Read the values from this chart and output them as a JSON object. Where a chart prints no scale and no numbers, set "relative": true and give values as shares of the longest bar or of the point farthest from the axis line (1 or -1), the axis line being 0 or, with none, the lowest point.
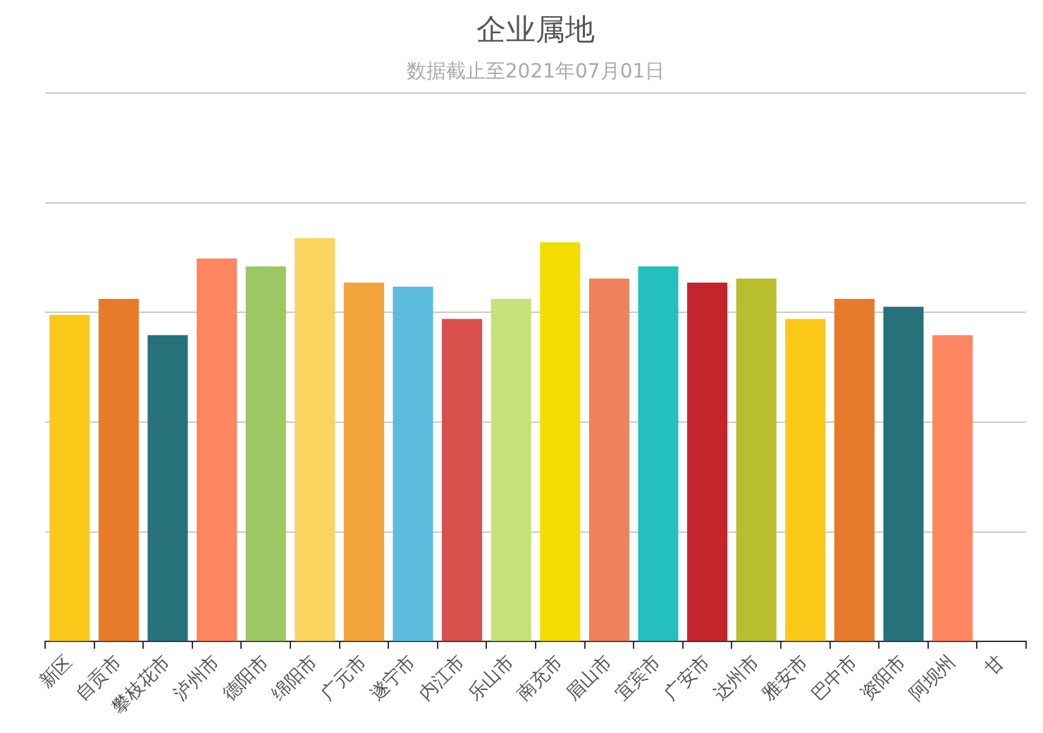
{
  "chart_data": {
    "type": "bar",
    "title": "企业属地",
    "subtitle": "数据截止至2021年07月01日",
    "categories": [
      "新区",
      "自贡市",
      "攀枝花市",
      "泸州市",
      "德阳市",
      "绵阳市",
      "广元市",
      "遂宁市",
      "内江市",
      "乐山市",
      "南充市",
      "眉山市",
      "宜宾市",
      "广安市",
      "达州市",
      "雅安市",
      "巴中市",
      "资阳市",
      "阿坝州",
      "甘"
    ],
    "values": [
      0.81,
      0.85,
      0.76,
      0.95,
      0.93,
      1,
      0.89,
      0.88,
      0.8,
      0.85,
      0.99,
      0.9,
      0.93,
      0.89,
      0.9,
      0.8,
      0.85,
      0.83,
      0.76,
      null
    ],
    "colors": [
      "#fbc91a",
      "#e87b2a",
      "#26717a",
      "#fd8560",
      "#9bc862",
      "#f9d45e",
      "#f2a33a",
      "#5bbcde",
      "#d9504c",
      "#c7e278",
      "#f4dc00",
      "#ee825c",
      "#24bfc0",
      "#c5242d",
      "#b8be2e",
      "#fbc91a",
      "#e87b2a",
      "#26717a",
      "#fd8560",
      null
    ],
    "relative": true,
    "grid": "y"
  }
}
